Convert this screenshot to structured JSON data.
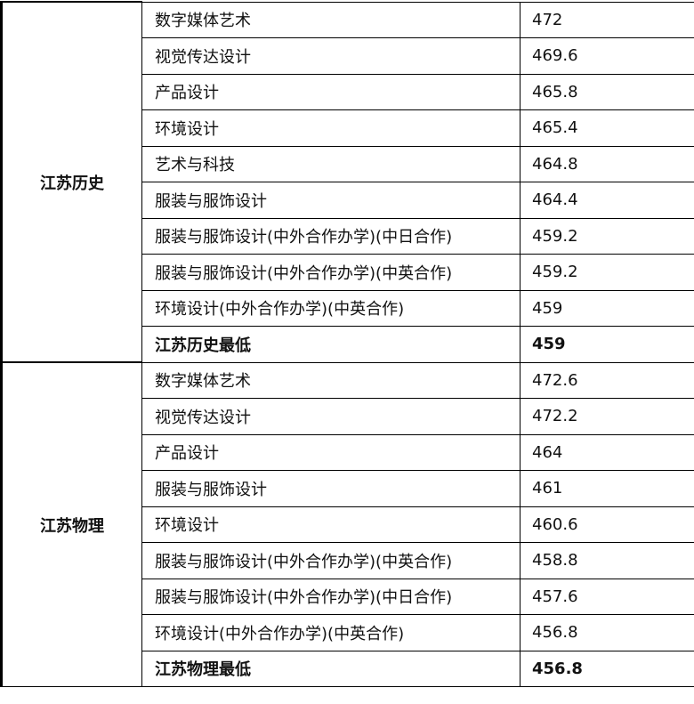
{
  "groups": [
    {
      "name": "江苏历史",
      "rows": [
        {
          "major": "数字媒体艺术",
          "score": "472"
        },
        {
          "major": "视觉传达设计",
          "score": "469.6"
        },
        {
          "major": "产品设计",
          "score": "465.8"
        },
        {
          "major": "环境设计",
          "score": "465.4"
        },
        {
          "major": "艺术与科技",
          "score": "464.8"
        },
        {
          "major": "服装与服饰设计",
          "score": "464.4"
        },
        {
          "major": "服装与服饰设计(中外合作办学)(中日合作)",
          "score": "459.2"
        },
        {
          "major": "服装与服饰设计(中外合作办学)(中英合作)",
          "score": "459.2"
        },
        {
          "major": "环境设计(中外合作办学)(中英合作)",
          "score": "459"
        }
      ],
      "min_label": "江苏历史最低",
      "min_score": "459"
    },
    {
      "name": "江苏物理",
      "rows": [
        {
          "major": "数字媒体艺术",
          "score": "472.6"
        },
        {
          "major": "视觉传达设计",
          "score": "472.2"
        },
        {
          "major": "产品设计",
          "score": "464"
        },
        {
          "major": "服装与服饰设计",
          "score": "461"
        },
        {
          "major": "环境设计",
          "score": "460.6"
        },
        {
          "major": "服装与服饰设计(中外合作办学)(中英合作)",
          "score": "458.8"
        },
        {
          "major": "服装与服饰设计(中外合作办学)(中日合作)",
          "score": "457.6"
        },
        {
          "major": "环境设计(中外合作办学)(中英合作)",
          "score": "456.8"
        }
      ],
      "min_label": "江苏物理最低",
      "min_score": "456.8"
    }
  ]
}
